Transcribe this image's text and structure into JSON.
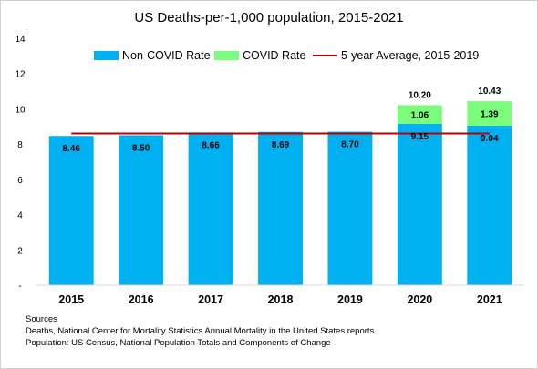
{
  "chart_data": {
    "type": "bar",
    "stacked": true,
    "title": "US Deaths-per-1,000 population, 2015-2021",
    "categories": [
      "2015",
      "2016",
      "2017",
      "2018",
      "2019",
      "2020",
      "2021"
    ],
    "series": [
      {
        "name": "Non-COVID Rate",
        "color": "#00B0F0",
        "values": [
          8.46,
          8.5,
          8.66,
          8.69,
          8.7,
          9.15,
          9.04
        ],
        "labels": [
          "8.46",
          "8.50",
          "8.66",
          "8.69",
          "8.70",
          "9.15",
          "9.04"
        ]
      },
      {
        "name": "COVID Rate",
        "color": "#7CFC7C",
        "values": [
          null,
          null,
          null,
          null,
          null,
          1.06,
          1.39
        ],
        "labels": [
          "",
          "",
          "",
          "",
          "",
          "1.06",
          "1.39"
        ]
      }
    ],
    "totals": [
      null,
      null,
      null,
      null,
      null,
      10.2,
      10.43
    ],
    "total_labels": [
      "",
      "",
      "",
      "",
      "",
      "10.20",
      "10.43"
    ],
    "reference_line": {
      "name": "5-year Average, 2015-2019",
      "color": "#C00000",
      "value": 8.6
    },
    "ylim": [
      0,
      14
    ],
    "yticks": [
      0,
      2,
      4,
      6,
      8,
      10,
      12,
      14
    ],
    "ytick_labels": [
      "-",
      "2",
      "4",
      "6",
      "8",
      "10",
      "12",
      "14"
    ],
    "xlabel": "",
    "ylabel": "",
    "legend_position": "top",
    "grid": false
  },
  "sources": {
    "heading": "Sources",
    "lines": [
      "Deaths, National Center for Mortality Statistics Annual Mortality in the United States reports",
      "Population: US Census, National Population Totals and Components of Change"
    ]
  }
}
